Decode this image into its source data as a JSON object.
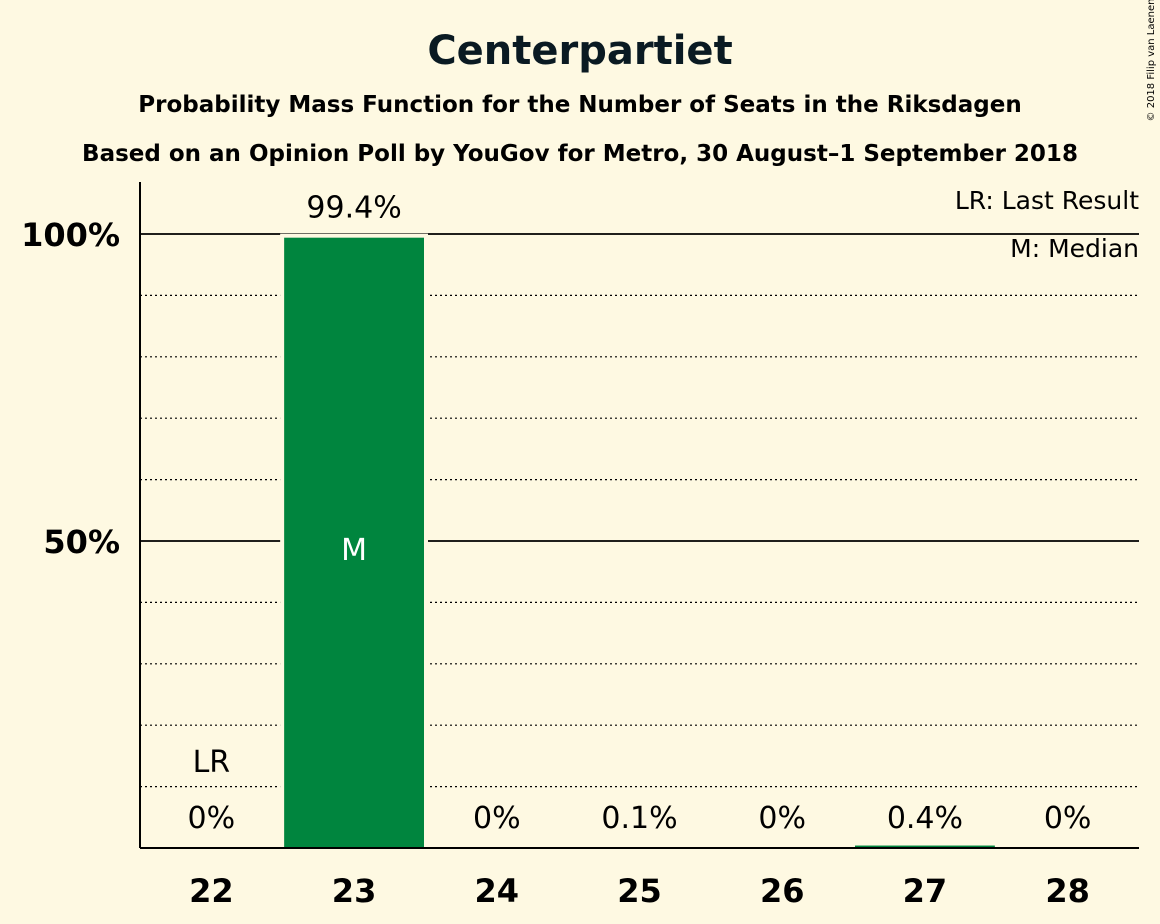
{
  "copyright": "© 2018 Filip van Laenen",
  "colors": {
    "background": "#fef9e2",
    "bar": "#00853e",
    "text": "#000000",
    "median_label": "#ffffff"
  },
  "legend": {
    "last_result": "LR: Last Result",
    "median": "M: Median"
  },
  "chart_data": {
    "type": "bar",
    "title": "Centerpartiet",
    "subtitle": "Probability Mass Function for the Number of Seats in the Riksdagen",
    "subtitle2": "Based on an Opinion Poll by YouGov for Metro, 30 August–1 September 2018",
    "categories": [
      "22",
      "23",
      "24",
      "25",
      "26",
      "27",
      "28"
    ],
    "values": [
      0,
      99.4,
      0,
      0.1,
      0,
      0.4,
      0
    ],
    "value_labels": [
      "0%",
      "99.4%",
      "0%",
      "0.1%",
      "0%",
      "0.4%",
      "0%"
    ],
    "y_ticks": [
      {
        "value": 50,
        "label": "50%"
      },
      {
        "value": 100,
        "label": "100%"
      }
    ],
    "minor_gridlines": [
      10,
      20,
      30,
      40,
      60,
      70,
      80,
      90
    ],
    "ylim": [
      0,
      100
    ],
    "last_result": {
      "category": "22",
      "label": "LR"
    },
    "median": {
      "category": "23",
      "label": "M"
    }
  }
}
